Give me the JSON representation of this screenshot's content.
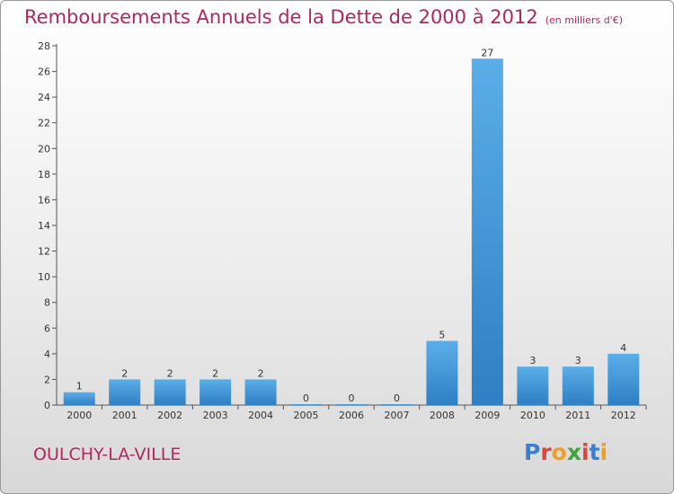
{
  "header": {
    "title": "Remboursements Annuels de la Dette de 2000 à 2012",
    "unit": "(en milliers d'€)"
  },
  "footer": {
    "place": "OULCHY-LA-VILLE",
    "brand": "Proxiti"
  },
  "chart_data": {
    "type": "bar",
    "title": "Remboursements Annuels de la Dette de 2000 à 2012",
    "subtitle": "(en milliers d'€)",
    "xlabel": "",
    "ylabel": "",
    "categories": [
      "2000",
      "2001",
      "2002",
      "2003",
      "2004",
      "2005",
      "2006",
      "2007",
      "2008",
      "2009",
      "2010",
      "2011",
      "2012"
    ],
    "values": [
      1,
      2,
      2,
      2,
      2,
      0,
      0,
      0,
      5,
      27,
      3,
      3,
      4
    ],
    "ylim": [
      0,
      28
    ],
    "yticks": [
      0,
      2,
      4,
      6,
      8,
      10,
      12,
      14,
      16,
      18,
      20,
      22,
      24,
      26,
      28
    ],
    "grid": false,
    "legend": "none"
  },
  "colors": {
    "title": "#b4255d",
    "bar_top": "#5aaee8",
    "bar_bottom": "#2f7fc4",
    "axis": "#555555"
  }
}
